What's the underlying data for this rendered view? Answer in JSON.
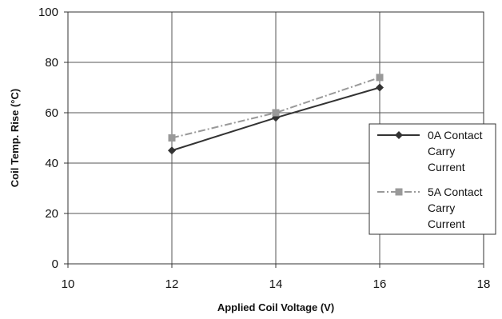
{
  "chart_data": {
    "type": "line",
    "title": "",
    "xlabel": "Applied Coil Voltage (V)",
    "ylabel": "Coil Temp. Rise (°C)",
    "xlim": [
      10,
      18
    ],
    "ylim": [
      0,
      100
    ],
    "xticks": [
      10,
      12,
      14,
      16,
      18
    ],
    "yticks": [
      0,
      20,
      40,
      60,
      80,
      100
    ],
    "grid": true,
    "legend_position": "right",
    "series": [
      {
        "name": "0A Contact Carry Current",
        "legend_lines": [
          "0A Contact",
          "Carry",
          "Current"
        ],
        "x": [
          12,
          14,
          16
        ],
        "y": [
          45,
          58,
          70
        ],
        "color": "#333333",
        "marker": "diamond",
        "line_style": "solid"
      },
      {
        "name": "5A Contact Carry Current",
        "legend_lines": [
          "5A Contact",
          "Carry",
          "Current"
        ],
        "x": [
          12,
          14,
          16
        ],
        "y": [
          50,
          60,
          74
        ],
        "color": "#999999",
        "marker": "square",
        "line_style": "dash-dot"
      }
    ]
  }
}
